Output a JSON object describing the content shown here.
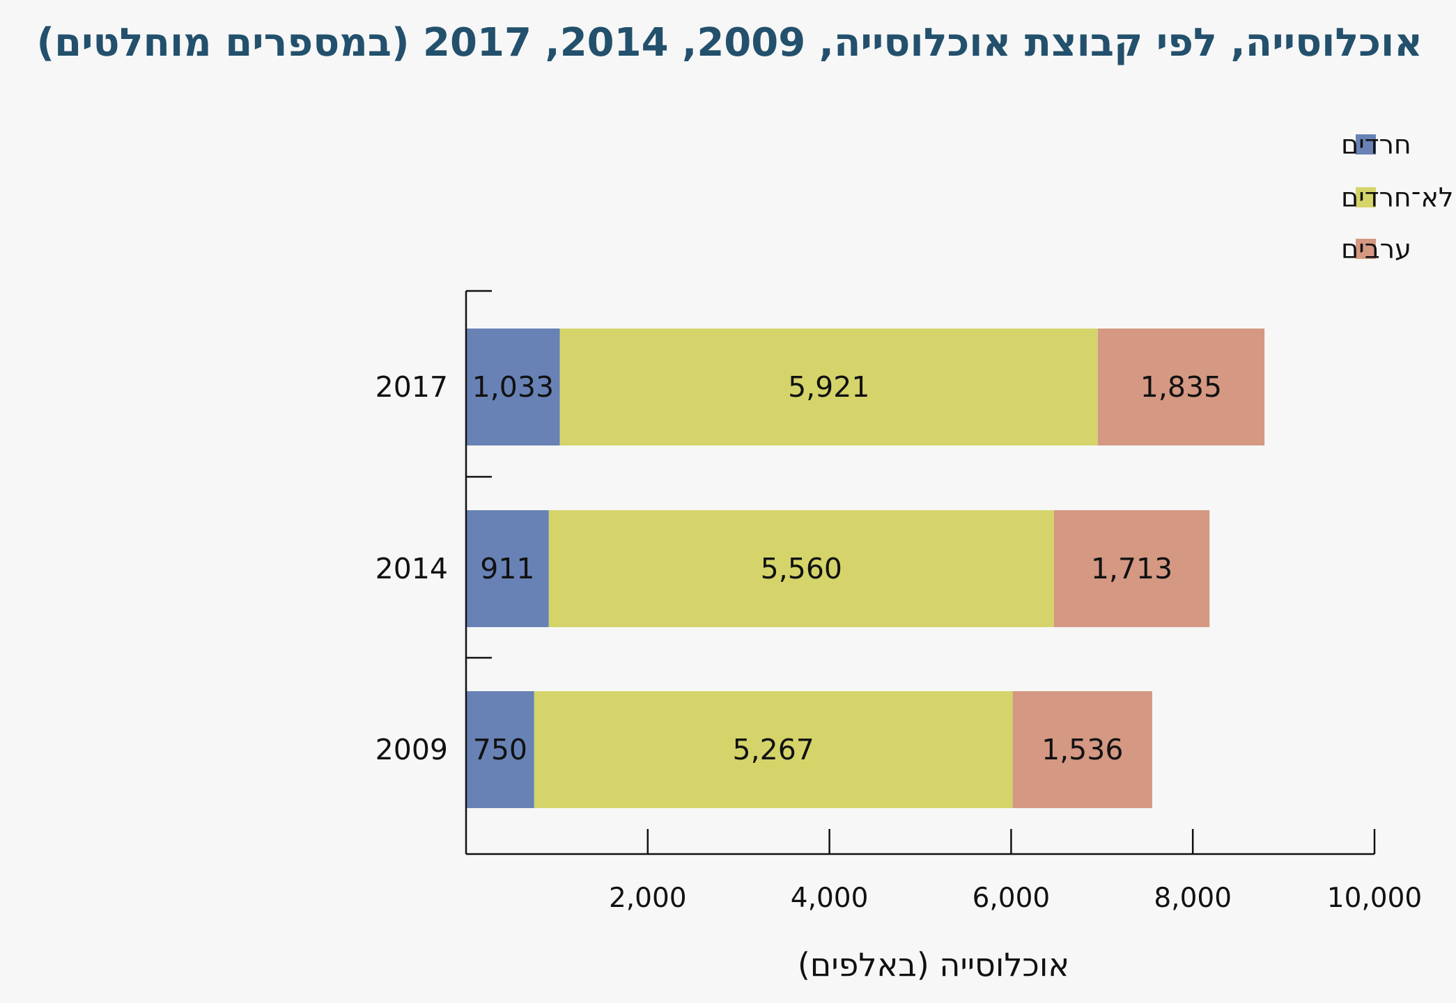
{
  "chart_data": {
    "type": "bar",
    "orientation": "horizontal",
    "stacked": true,
    "title": "אוכלוסייה, לפי קבוצת אוכלוסייה, 2009, 2014, 2017 (במספרים מוחלטים)",
    "xlabel": "אוכלוסייה (באלפים)",
    "ylabel": "",
    "xlim": [
      0,
      10000
    ],
    "xticks": [
      2000,
      4000,
      6000,
      8000,
      10000
    ],
    "xtick_labels": [
      "2,000",
      "4,000",
      "6,000",
      "8,000",
      "10,000"
    ],
    "categories": [
      "2017",
      "2014",
      "2009"
    ],
    "series": [
      {
        "name": "חרדים",
        "color": "#6882b5",
        "values": [
          1033,
          911,
          750
        ],
        "labels": [
          "1,033",
          "911",
          "750"
        ]
      },
      {
        "name": "יהודים ואחרים לא־חרדים",
        "color": "#d5d46a",
        "values": [
          5921,
          5560,
          5267
        ],
        "labels": [
          "5,921",
          "5,560",
          "5,267"
        ]
      },
      {
        "name": "ערבים",
        "color": "#d49883",
        "values": [
          1835,
          1713,
          1536
        ],
        "labels": [
          "1,835",
          "1,713",
          "1,536"
        ]
      }
    ],
    "legend_position": "top-right",
    "grid": false
  }
}
